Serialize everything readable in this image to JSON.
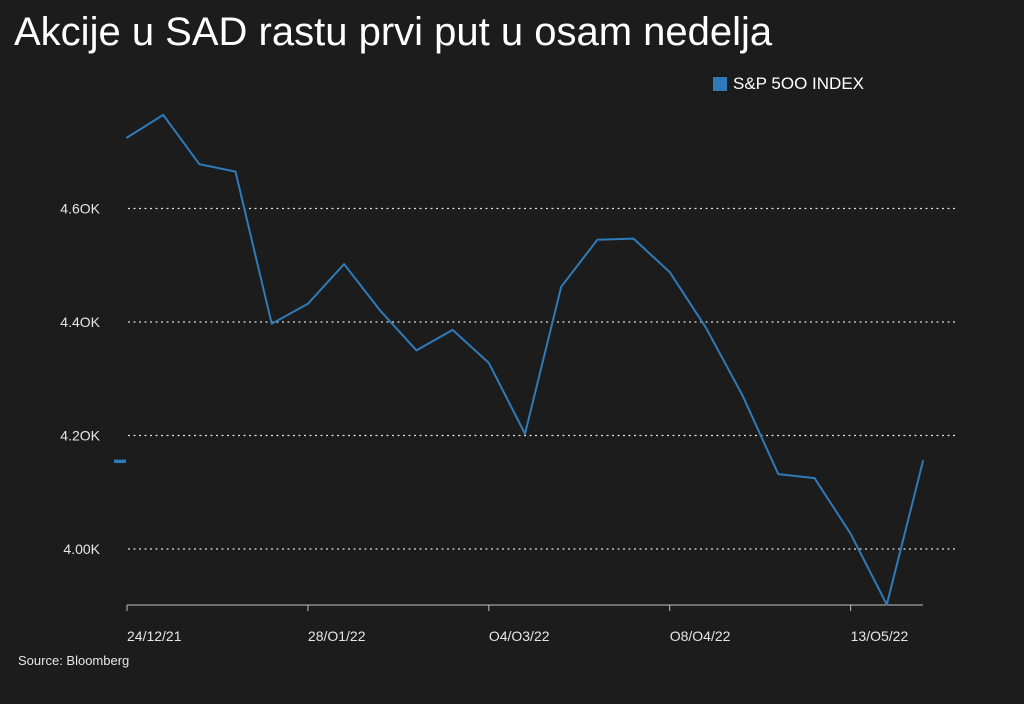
{
  "title": "Akcije u SAD rastu prvi put u osam nedelja",
  "source": "Source: Bloomberg",
  "colors": {
    "background": "#1c1c1c",
    "series": "#2f7ab8",
    "grid": "#e0e0e0",
    "text": "#e6e6e6"
  },
  "chart_data": {
    "type": "line",
    "title": "Akcije u SAD rastu prvi put u osam nedelja",
    "xlabel": "",
    "ylabel": "",
    "ylim": [
      3.9,
      4.78
    ],
    "y_ticks": [
      {
        "value": 4.0,
        "label": "4.00K"
      },
      {
        "value": 4.2,
        "label": "4.2OK"
      },
      {
        "value": 4.4,
        "label": "4.4OK"
      },
      {
        "value": 4.6,
        "label": "4.6OK"
      }
    ],
    "x_ticks": [
      {
        "index": 0,
        "label": "24/12/21"
      },
      {
        "index": 5,
        "label": "28/O1/22"
      },
      {
        "index": 10,
        "label": "O4/O3/22"
      },
      {
        "index": 15,
        "label": "O8/O4/22"
      },
      {
        "index": 20,
        "label": "13/O5/22"
      }
    ],
    "grid": "horizontal-dotted",
    "legend_position": "top-right",
    "last_value_marker": 4.155,
    "series": [
      {
        "name": "S&P 5OO INDEX",
        "values": [
          4.725,
          4.765,
          4.678,
          4.665,
          4.397,
          4.432,
          4.502,
          4.42,
          4.35,
          4.386,
          4.328,
          4.203,
          4.462,
          4.545,
          4.547,
          4.488,
          4.39,
          4.272,
          4.132,
          4.125,
          4.027,
          3.902,
          4.155
        ]
      }
    ]
  }
}
